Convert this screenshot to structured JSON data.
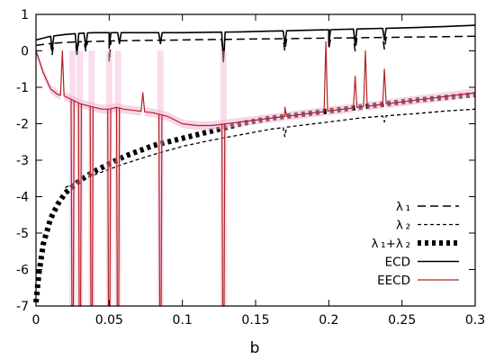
{
  "chart_data": {
    "type": "line",
    "title": "",
    "xlabel": "b",
    "ylabel": "",
    "xlim": [
      0,
      0.3
    ],
    "ylim": [
      -7,
      1
    ],
    "xticks": [
      0,
      0.05,
      0.1,
      0.15,
      0.2,
      0.25,
      0.3
    ],
    "xtick_labels": [
      "0",
      "0.05",
      "0.1",
      "0.15",
      "0.2",
      "0.25",
      "0.3"
    ],
    "yticks": [
      -7,
      -6,
      -5,
      -4,
      -3,
      -2,
      -1,
      0,
      1
    ],
    "ytick_labels": [
      "-7",
      "-6",
      "-5",
      "-4",
      "-3",
      "-2",
      "-1",
      "0",
      "1"
    ],
    "grid": false,
    "legend_position": "right",
    "series": [
      {
        "name": "λ₁",
        "legend_label": "λ ₁",
        "style": "dashed",
        "color": "#000000",
        "x": [
          0,
          0.01,
          0.02,
          0.03,
          0.04,
          0.05,
          0.06,
          0.08,
          0.1,
          0.12,
          0.14,
          0.16,
          0.18,
          0.2,
          0.22,
          0.24,
          0.26,
          0.28,
          0.3
        ],
        "y": [
          0.15,
          0.2,
          0.23,
          0.25,
          0.26,
          0.27,
          0.28,
          0.29,
          0.3,
          0.31,
          0.32,
          0.33,
          0.34,
          0.35,
          0.36,
          0.37,
          0.38,
          0.39,
          0.4
        ],
        "dips": [
          [
            0.011,
            -0.1
          ],
          [
            0.028,
            -0.05
          ],
          [
            0.034,
            0.0
          ],
          [
            0.05,
            -0.3
          ],
          [
            0.128,
            -0.2
          ],
          [
            0.17,
            0.0
          ],
          [
            0.2,
            0.05
          ],
          [
            0.218,
            0.0
          ],
          [
            0.238,
            0.05
          ]
        ]
      },
      {
        "name": "λ₂",
        "legend_label": "λ ₂",
        "style": "short-dashed",
        "color": "#000000",
        "x": [
          0.02,
          0.03,
          0.04,
          0.05,
          0.06,
          0.08,
          0.1,
          0.12,
          0.14,
          0.16,
          0.18,
          0.2,
          0.22,
          0.24,
          0.26,
          0.28,
          0.3
        ],
        "y": [
          -3.75,
          -3.55,
          -3.4,
          -3.25,
          -3.1,
          -2.85,
          -2.62,
          -2.45,
          -2.3,
          -2.15,
          -2.05,
          -1.95,
          -1.85,
          -1.78,
          -1.72,
          -1.65,
          -1.6
        ],
        "dips": [
          [
            0.17,
            -2.35
          ],
          [
            0.238,
            -1.95
          ]
        ]
      },
      {
        "name": "λ₁+λ₂",
        "legend_label": "λ ₁+λ ₂",
        "style": "thick-dotted",
        "color": "#000000",
        "x": [
          0,
          0.002,
          0.005,
          0.01,
          0.015,
          0.02,
          0.03,
          0.04,
          0.05,
          0.06,
          0.08,
          0.1,
          0.12,
          0.14,
          0.16,
          0.18,
          0.2,
          0.22,
          0.24,
          0.26,
          0.28,
          0.3
        ],
        "y": [
          -6.9,
          -6.1,
          -5.3,
          -4.6,
          -4.2,
          -3.9,
          -3.55,
          -3.3,
          -3.1,
          -2.9,
          -2.6,
          -2.4,
          -2.2,
          -2.0,
          -1.85,
          -1.75,
          -1.65,
          -1.55,
          -1.45,
          -1.35,
          -1.28,
          -1.2
        ]
      },
      {
        "name": "ECD",
        "legend_label": "ECD",
        "style": "solid",
        "color": "#000000",
        "x": [
          0,
          0.01,
          0.02,
          0.03,
          0.04,
          0.05,
          0.06,
          0.08,
          0.1,
          0.12,
          0.14,
          0.16,
          0.18,
          0.2,
          0.22,
          0.24,
          0.26,
          0.28,
          0.3
        ],
        "y": [
          0.3,
          0.4,
          0.45,
          0.48,
          0.5,
          0.5,
          0.5,
          0.5,
          0.5,
          0.51,
          0.52,
          0.54,
          0.56,
          0.58,
          0.6,
          0.62,
          0.64,
          0.67,
          0.7
        ],
        "dips": [
          [
            0.011,
            0.0
          ],
          [
            0.028,
            -0.1
          ],
          [
            0.034,
            0.1
          ],
          [
            0.05,
            0.1
          ],
          [
            0.057,
            0.2
          ],
          [
            0.085,
            0.2
          ],
          [
            0.128,
            -0.3
          ],
          [
            0.17,
            0.2
          ],
          [
            0.2,
            0.2
          ],
          [
            0.218,
            0.2
          ],
          [
            0.238,
            0.3
          ]
        ]
      },
      {
        "name": "EECD",
        "legend_label": "EECD",
        "style": "solid-band",
        "color": "#b22222",
        "band_color": "#f2b3d6",
        "x": [
          0,
          0.005,
          0.01,
          0.015,
          0.02,
          0.025,
          0.03,
          0.035,
          0.04,
          0.045,
          0.05,
          0.055,
          0.06,
          0.07,
          0.08,
          0.09,
          0.1,
          0.11,
          0.12,
          0.13,
          0.14,
          0.15,
          0.16,
          0.17,
          0.18,
          0.19,
          0.2,
          0.21,
          0.22,
          0.23,
          0.24,
          0.25,
          0.26,
          0.27,
          0.28,
          0.29,
          0.3
        ],
        "y": [
          0.0,
          -0.6,
          -1.05,
          -1.2,
          -1.25,
          -1.35,
          -1.45,
          -1.5,
          -1.55,
          -1.6,
          -1.6,
          -1.55,
          -1.6,
          -1.65,
          -1.7,
          -1.8,
          -2.0,
          -2.05,
          -2.05,
          -2.0,
          -1.95,
          -1.9,
          -1.85,
          -1.8,
          -1.75,
          -1.7,
          -1.65,
          -1.6,
          -1.55,
          -1.5,
          -1.45,
          -1.4,
          -1.35,
          -1.3,
          -1.25,
          -1.2,
          -1.15
        ],
        "spikes": [
          [
            0.018,
            0.0
          ],
          [
            0.073,
            -1.15
          ],
          [
            0.17,
            -1.55
          ],
          [
            0.198,
            0.25
          ],
          [
            0.218,
            -0.7
          ],
          [
            0.225,
            0.0
          ],
          [
            0.238,
            -0.5
          ]
        ],
        "drops": [
          0.025,
          0.03,
          0.038,
          0.05,
          0.056,
          0.085,
          0.128
        ]
      }
    ]
  }
}
